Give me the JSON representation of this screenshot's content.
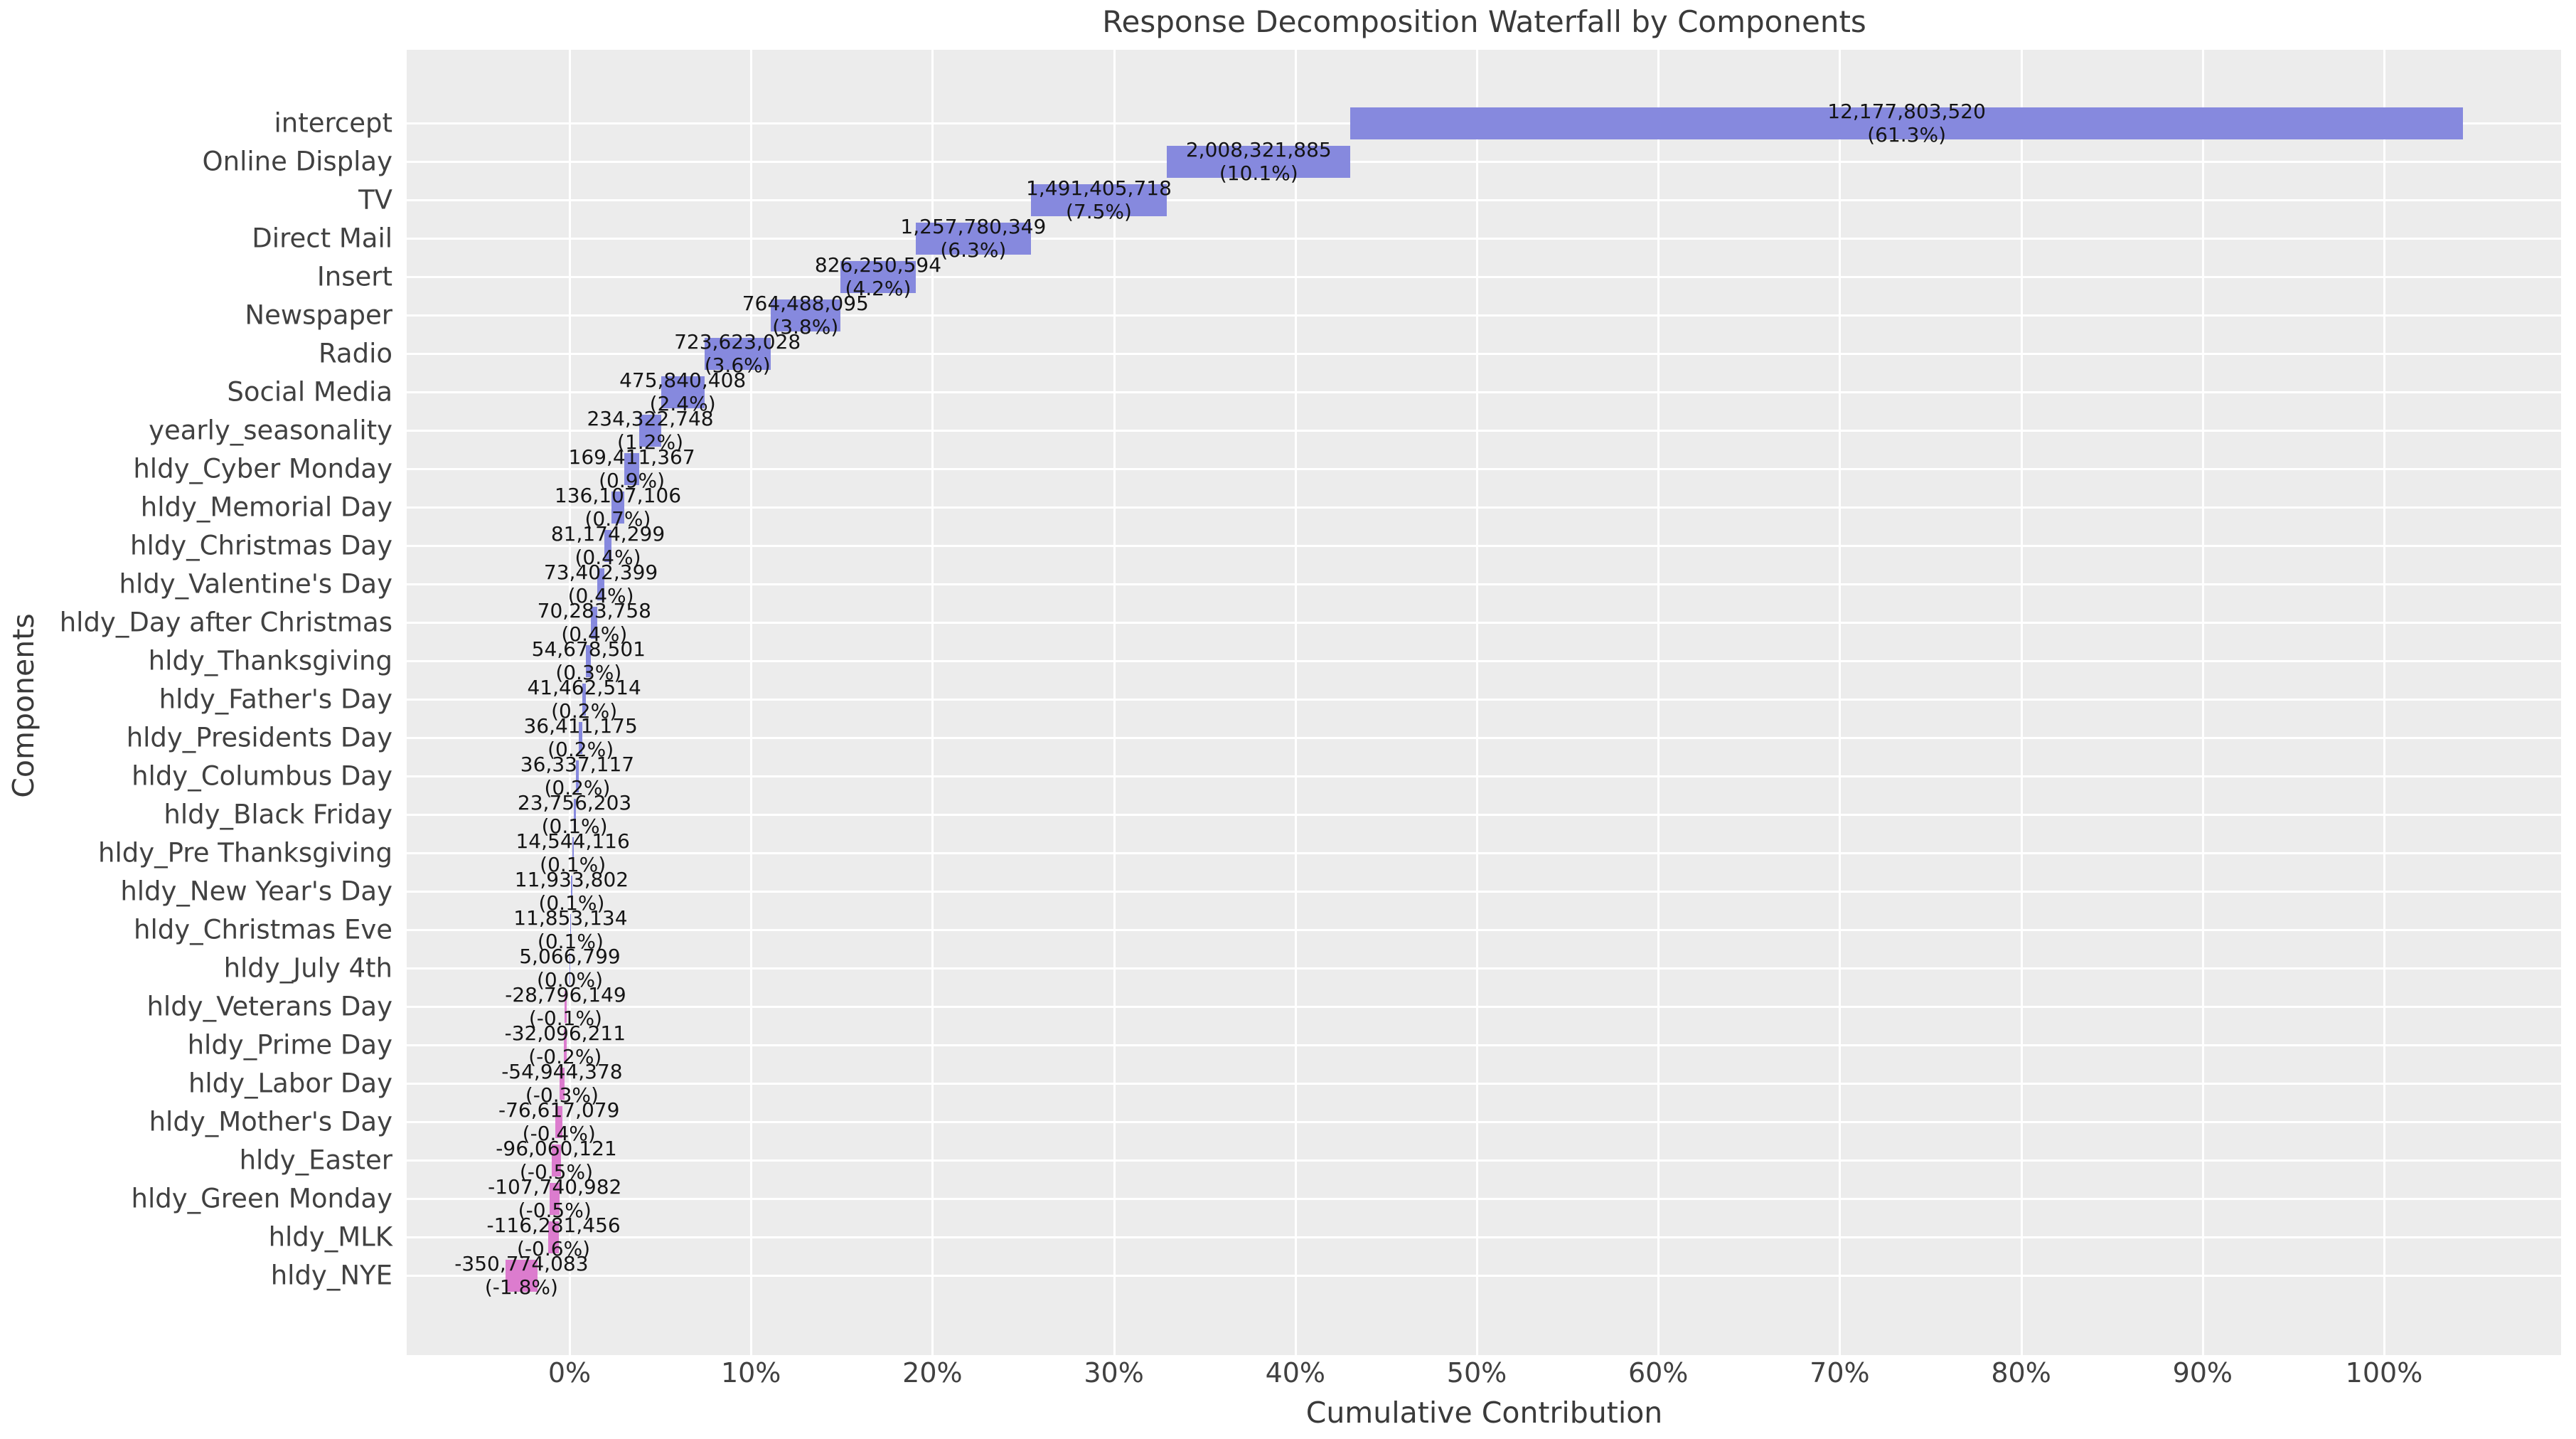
{
  "chart_data": {
    "type": "bar",
    "subtype": "waterfall",
    "orientation": "horizontal",
    "title": "Response Decomposition Waterfall by Components",
    "xlabel": "Cumulative Contribution",
    "ylabel": "Components",
    "x_ticks": [
      "0%",
      "10%",
      "20%",
      "30%",
      "40%",
      "50%",
      "60%",
      "70%",
      "80%",
      "90%",
      "100%"
    ],
    "x_tick_values": [
      0,
      10,
      20,
      30,
      40,
      50,
      60,
      70,
      80,
      90,
      100
    ],
    "x_range_pct": [
      -8.97,
      109.76
    ],
    "grid": "on",
    "legend": "none",
    "categories": [
      "intercept",
      "Online Display",
      "TV",
      "Direct Mail",
      "Insert",
      "Newspaper",
      "Radio",
      "Social Media",
      "yearly_seasonality",
      "hldy_Cyber Monday",
      "hldy_Memorial Day",
      "hldy_Christmas Day",
      "hldy_Valentine's Day",
      "hldy_Day after Christmas",
      "hldy_Thanksgiving",
      "hldy_Father's Day",
      "hldy_Presidents Day",
      "hldy_Columbus Day",
      "hldy_Black Friday",
      "hldy_Pre Thanksgiving",
      "hldy_New Year's Day",
      "hldy_Christmas Eve",
      "hldy_July 4th",
      "hldy_Veterans Day",
      "hldy_Prime Day",
      "hldy_Labor Day",
      "hldy_Mother's Day",
      "hldy_Easter",
      "hldy_Green Monday",
      "hldy_MLK",
      "hldy_NYE"
    ],
    "values": [
      12177803520,
      2008321885,
      1491405718,
      1257780349,
      826250594,
      764488095,
      723623028,
      475840408,
      234322748,
      169411367,
      136107106,
      81174299,
      73402399,
      70283758,
      54678501,
      41462514,
      36411175,
      36337117,
      23756203,
      14544116,
      11933802,
      11853134,
      5066799,
      -28796149,
      -32096211,
      -54944378,
      -76617079,
      -96060121,
      -107740982,
      -116281456,
      -350774083
    ],
    "value_labels": [
      "12,177,803,520",
      "2,008,321,885",
      "1,491,405,718",
      "1,257,780,349",
      "826,250,594",
      "764,488,095",
      "723,623,028",
      "475,840,408",
      "234,322,748",
      "169,411,367",
      "136,107,106",
      "81,174,299",
      "73,402,399",
      "70,283,758",
      "54,678,501",
      "41,462,514",
      "36,411,175",
      "36,337,117",
      "23,756,203",
      "14,544,116",
      "11,933,802",
      "11,853,134",
      "5,066,799",
      "-28,796,149",
      "-32,096,211",
      "-54,944,378",
      "-76,617,079",
      "-96,060,121",
      "-107,740,982",
      "-116,281,456",
      "-350,774,083"
    ],
    "pct_labels": [
      "(61.3%)",
      "(10.1%)",
      "(7.5%)",
      "(6.3%)",
      "(4.2%)",
      "(3.8%)",
      "(3.6%)",
      "(2.4%)",
      "(1.2%)",
      "(0.9%)",
      "(0.7%)",
      "(0.4%)",
      "(0.4%)",
      "(0.4%)",
      "(0.3%)",
      "(0.2%)",
      "(0.2%)",
      "(0.2%)",
      "(0.1%)",
      "(0.1%)",
      "(0.1%)",
      "(0.1%)",
      "(0.0%)",
      "(-0.1%)",
      "(-0.2%)",
      "(-0.3%)",
      "(-0.4%)",
      "(-0.5%)",
      "(-0.5%)",
      "(-0.6%)",
      "(-1.8%)"
    ],
    "colors": {
      "positive_bar": "#8689de",
      "negative_bar": "#dc7cce",
      "plot_background": "#ececec",
      "figure_background": "#ffffff",
      "gridline": "#ffffff",
      "text": "#3a3a3a"
    }
  }
}
